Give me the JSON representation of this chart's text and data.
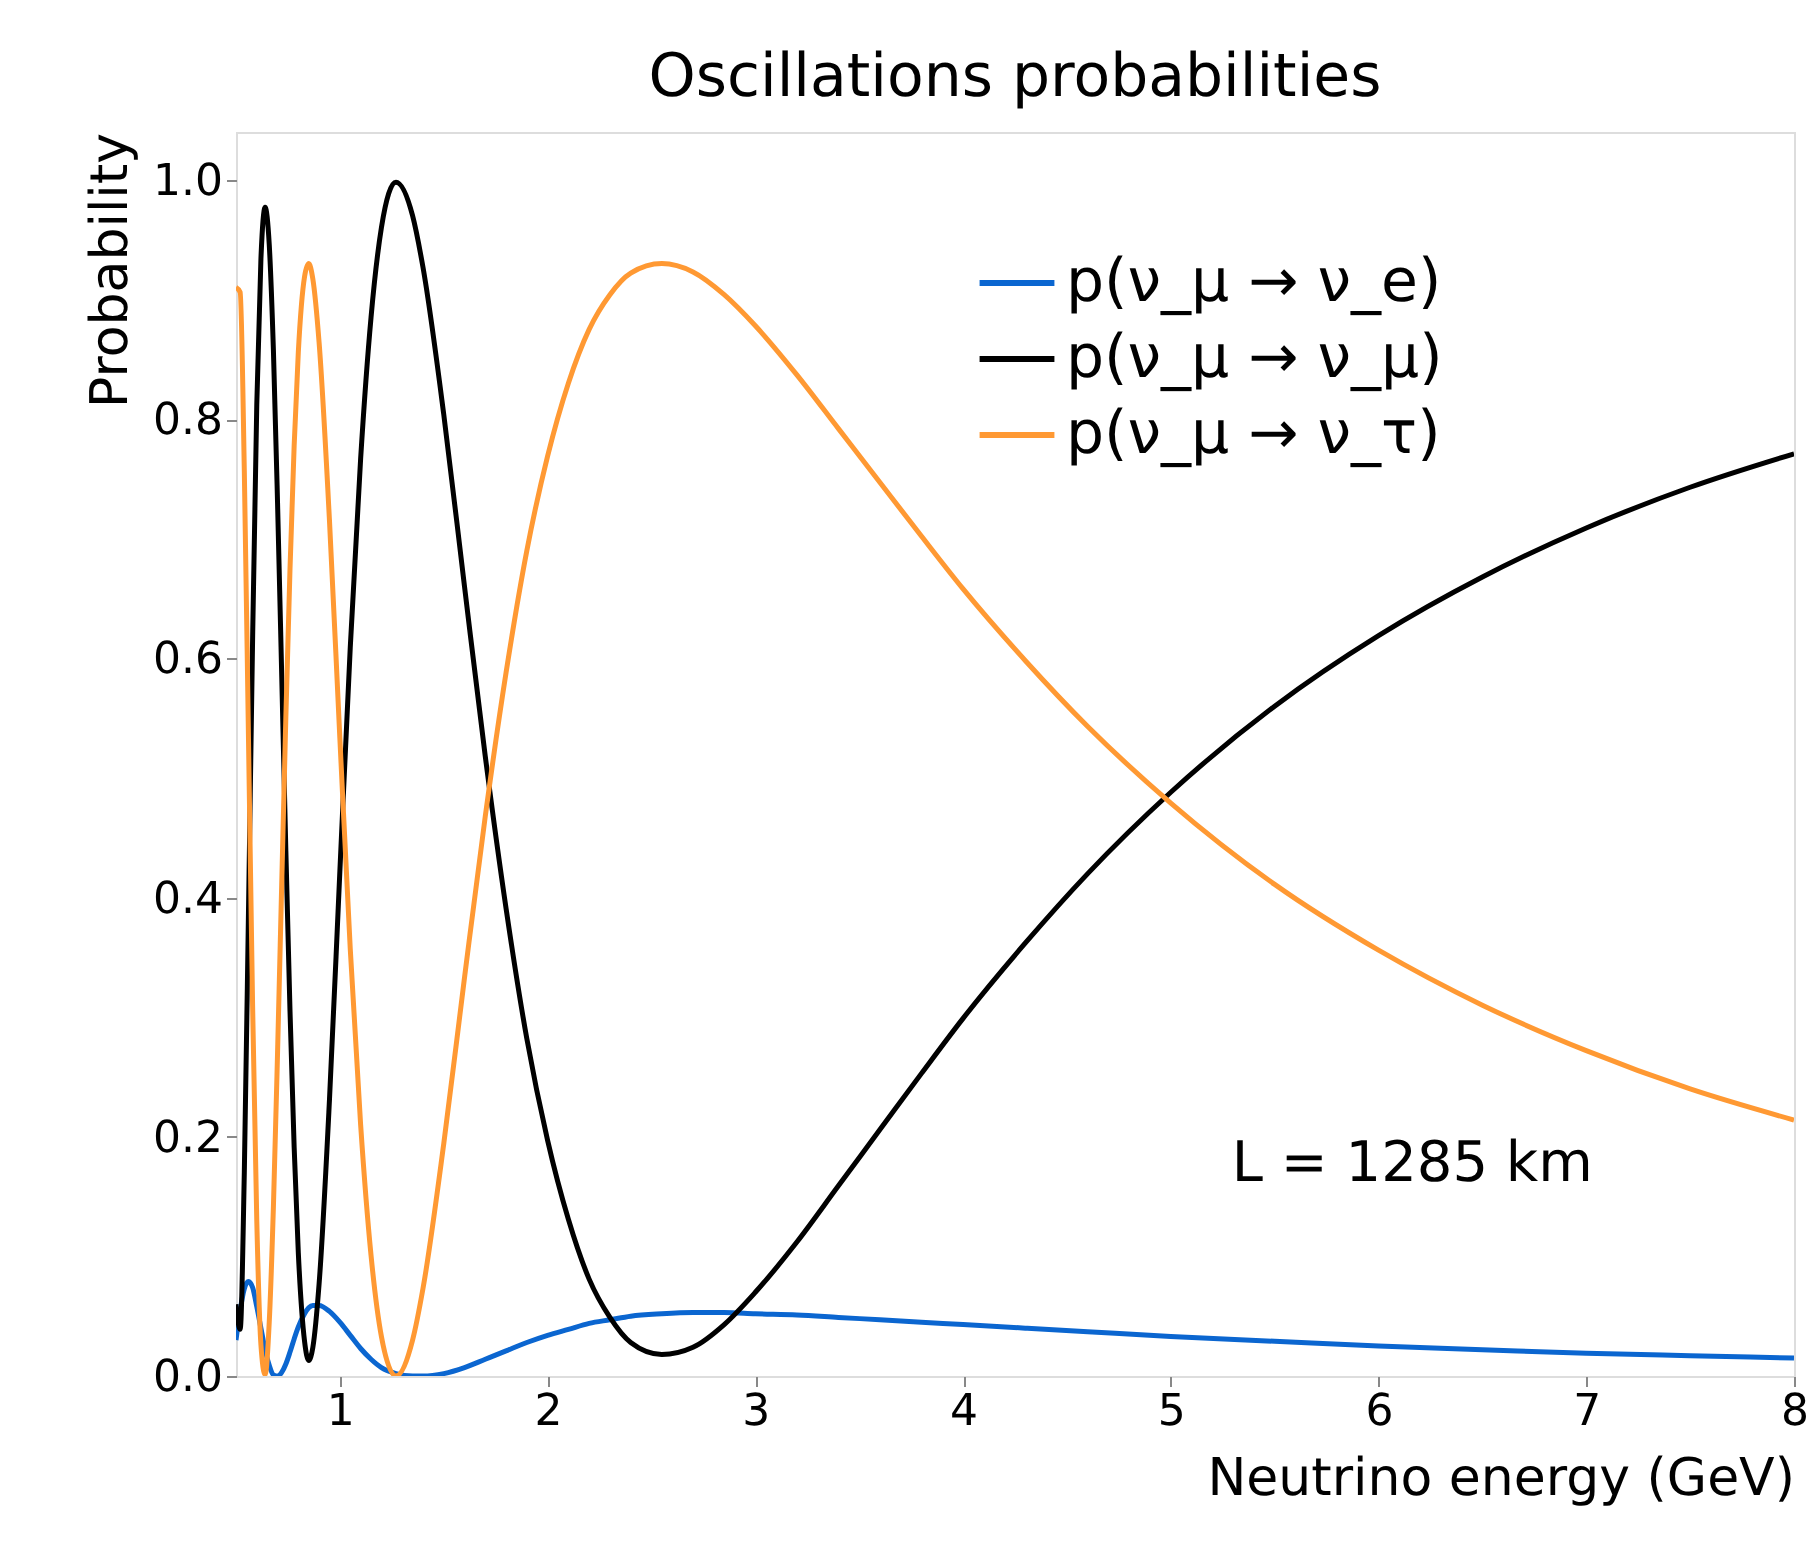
{
  "chart_data": {
    "type": "line",
    "title": "Oscillations probabilities",
    "xlabel": "Neutrino energy (GeV)",
    "ylabel": "Probability",
    "x": [
      0.5,
      0.52,
      0.54,
      0.56,
      0.58,
      0.6,
      0.62,
      0.64,
      0.66,
      0.68,
      0.7,
      0.72,
      0.74,
      0.76,
      0.78,
      0.8,
      0.83,
      0.85,
      0.87,
      0.9,
      0.95,
      1.0,
      1.05,
      1.1,
      1.15,
      1.2,
      1.27,
      1.35,
      1.4,
      1.5,
      1.6,
      1.7,
      1.8,
      1.9,
      2.0,
      2.1,
      2.2,
      2.3,
      2.4,
      2.55,
      2.7,
      2.85,
      3.0,
      3.2,
      3.4,
      3.6,
      3.8,
      4.0,
      4.3,
      4.6,
      5.0,
      5.5,
      6.0,
      6.5,
      7.0,
      7.5,
      8.0
    ],
    "series": [
      {
        "name": "p(ν_μ → ν_e)",
        "color": "#0b66d0",
        "values": [
          0.03,
          0.055,
          0.073,
          0.079,
          0.074,
          0.058,
          0.04,
          0.022,
          0.009,
          0.001,
          0.0,
          0.003,
          0.01,
          0.02,
          0.031,
          0.041,
          0.052,
          0.057,
          0.059,
          0.059,
          0.054,
          0.045,
          0.034,
          0.023,
          0.014,
          0.007,
          0.002,
          0.0,
          0.0,
          0.002,
          0.007,
          0.014,
          0.021,
          0.028,
          0.034,
          0.039,
          0.044,
          0.047,
          0.05,
          0.052,
          0.053,
          0.053,
          0.052,
          0.051,
          0.049,
          0.047,
          0.045,
          0.043,
          0.04,
          0.037,
          0.033,
          0.029,
          0.025,
          0.022,
          0.019,
          0.017,
          0.015
        ]
      },
      {
        "name": "p(ν_μ → ν_μ)",
        "color": "#000000",
        "values": [
          0.06,
          0.039,
          0.17,
          0.387,
          0.617,
          0.812,
          0.934,
          0.977,
          0.946,
          0.858,
          0.73,
          0.586,
          0.439,
          0.305,
          0.191,
          0.103,
          0.029,
          0.013,
          0.024,
          0.077,
          0.231,
          0.422,
          0.609,
          0.767,
          0.885,
          0.96,
          0.998,
          0.97,
          0.927,
          0.804,
          0.66,
          0.518,
          0.391,
          0.282,
          0.197,
          0.131,
          0.081,
          0.049,
          0.028,
          0.018,
          0.024,
          0.043,
          0.07,
          0.112,
          0.159,
          0.206,
          0.253,
          0.299,
          0.362,
          0.42,
          0.488,
          0.56,
          0.619,
          0.668,
          0.709,
          0.743,
          0.771
        ]
      },
      {
        "name": "p(ν_μ → ν_τ)",
        "color": "#ff9933",
        "values": [
          0.91,
          0.906,
          0.757,
          0.534,
          0.309,
          0.13,
          0.026,
          0.001,
          0.045,
          0.141,
          0.27,
          0.411,
          0.551,
          0.675,
          0.778,
          0.856,
          0.919,
          0.93,
          0.917,
          0.864,
          0.715,
          0.533,
          0.357,
          0.21,
          0.101,
          0.033,
          0.0,
          0.03,
          0.073,
          0.194,
          0.333,
          0.468,
          0.588,
          0.69,
          0.769,
          0.83,
          0.875,
          0.904,
          0.922,
          0.93,
          0.923,
          0.904,
          0.878,
          0.837,
          0.792,
          0.747,
          0.702,
          0.658,
          0.598,
          0.543,
          0.479,
          0.411,
          0.356,
          0.31,
          0.272,
          0.24,
          0.214
        ]
      }
    ],
    "xlim": [
      0.5,
      8
    ],
    "xticks": [
      1,
      2,
      3,
      4,
      5,
      6,
      7,
      8
    ],
    "ylim": [
      0,
      1.04
    ],
    "yticks": [
      {
        "value": 0,
        "label": "0.0"
      },
      {
        "value": 0.2,
        "label": "0.2"
      },
      {
        "value": 0.4,
        "label": "0.4"
      },
      {
        "value": 0.6,
        "label": "0.6"
      },
      {
        "value": 0.8,
        "label": "0.8"
      },
      {
        "value": 1.0,
        "label": "1.0"
      }
    ],
    "annotations": [
      "L = 1285 km"
    ],
    "legend": "top right",
    "grid": false,
    "marker": "none",
    "line_style": "solid"
  }
}
